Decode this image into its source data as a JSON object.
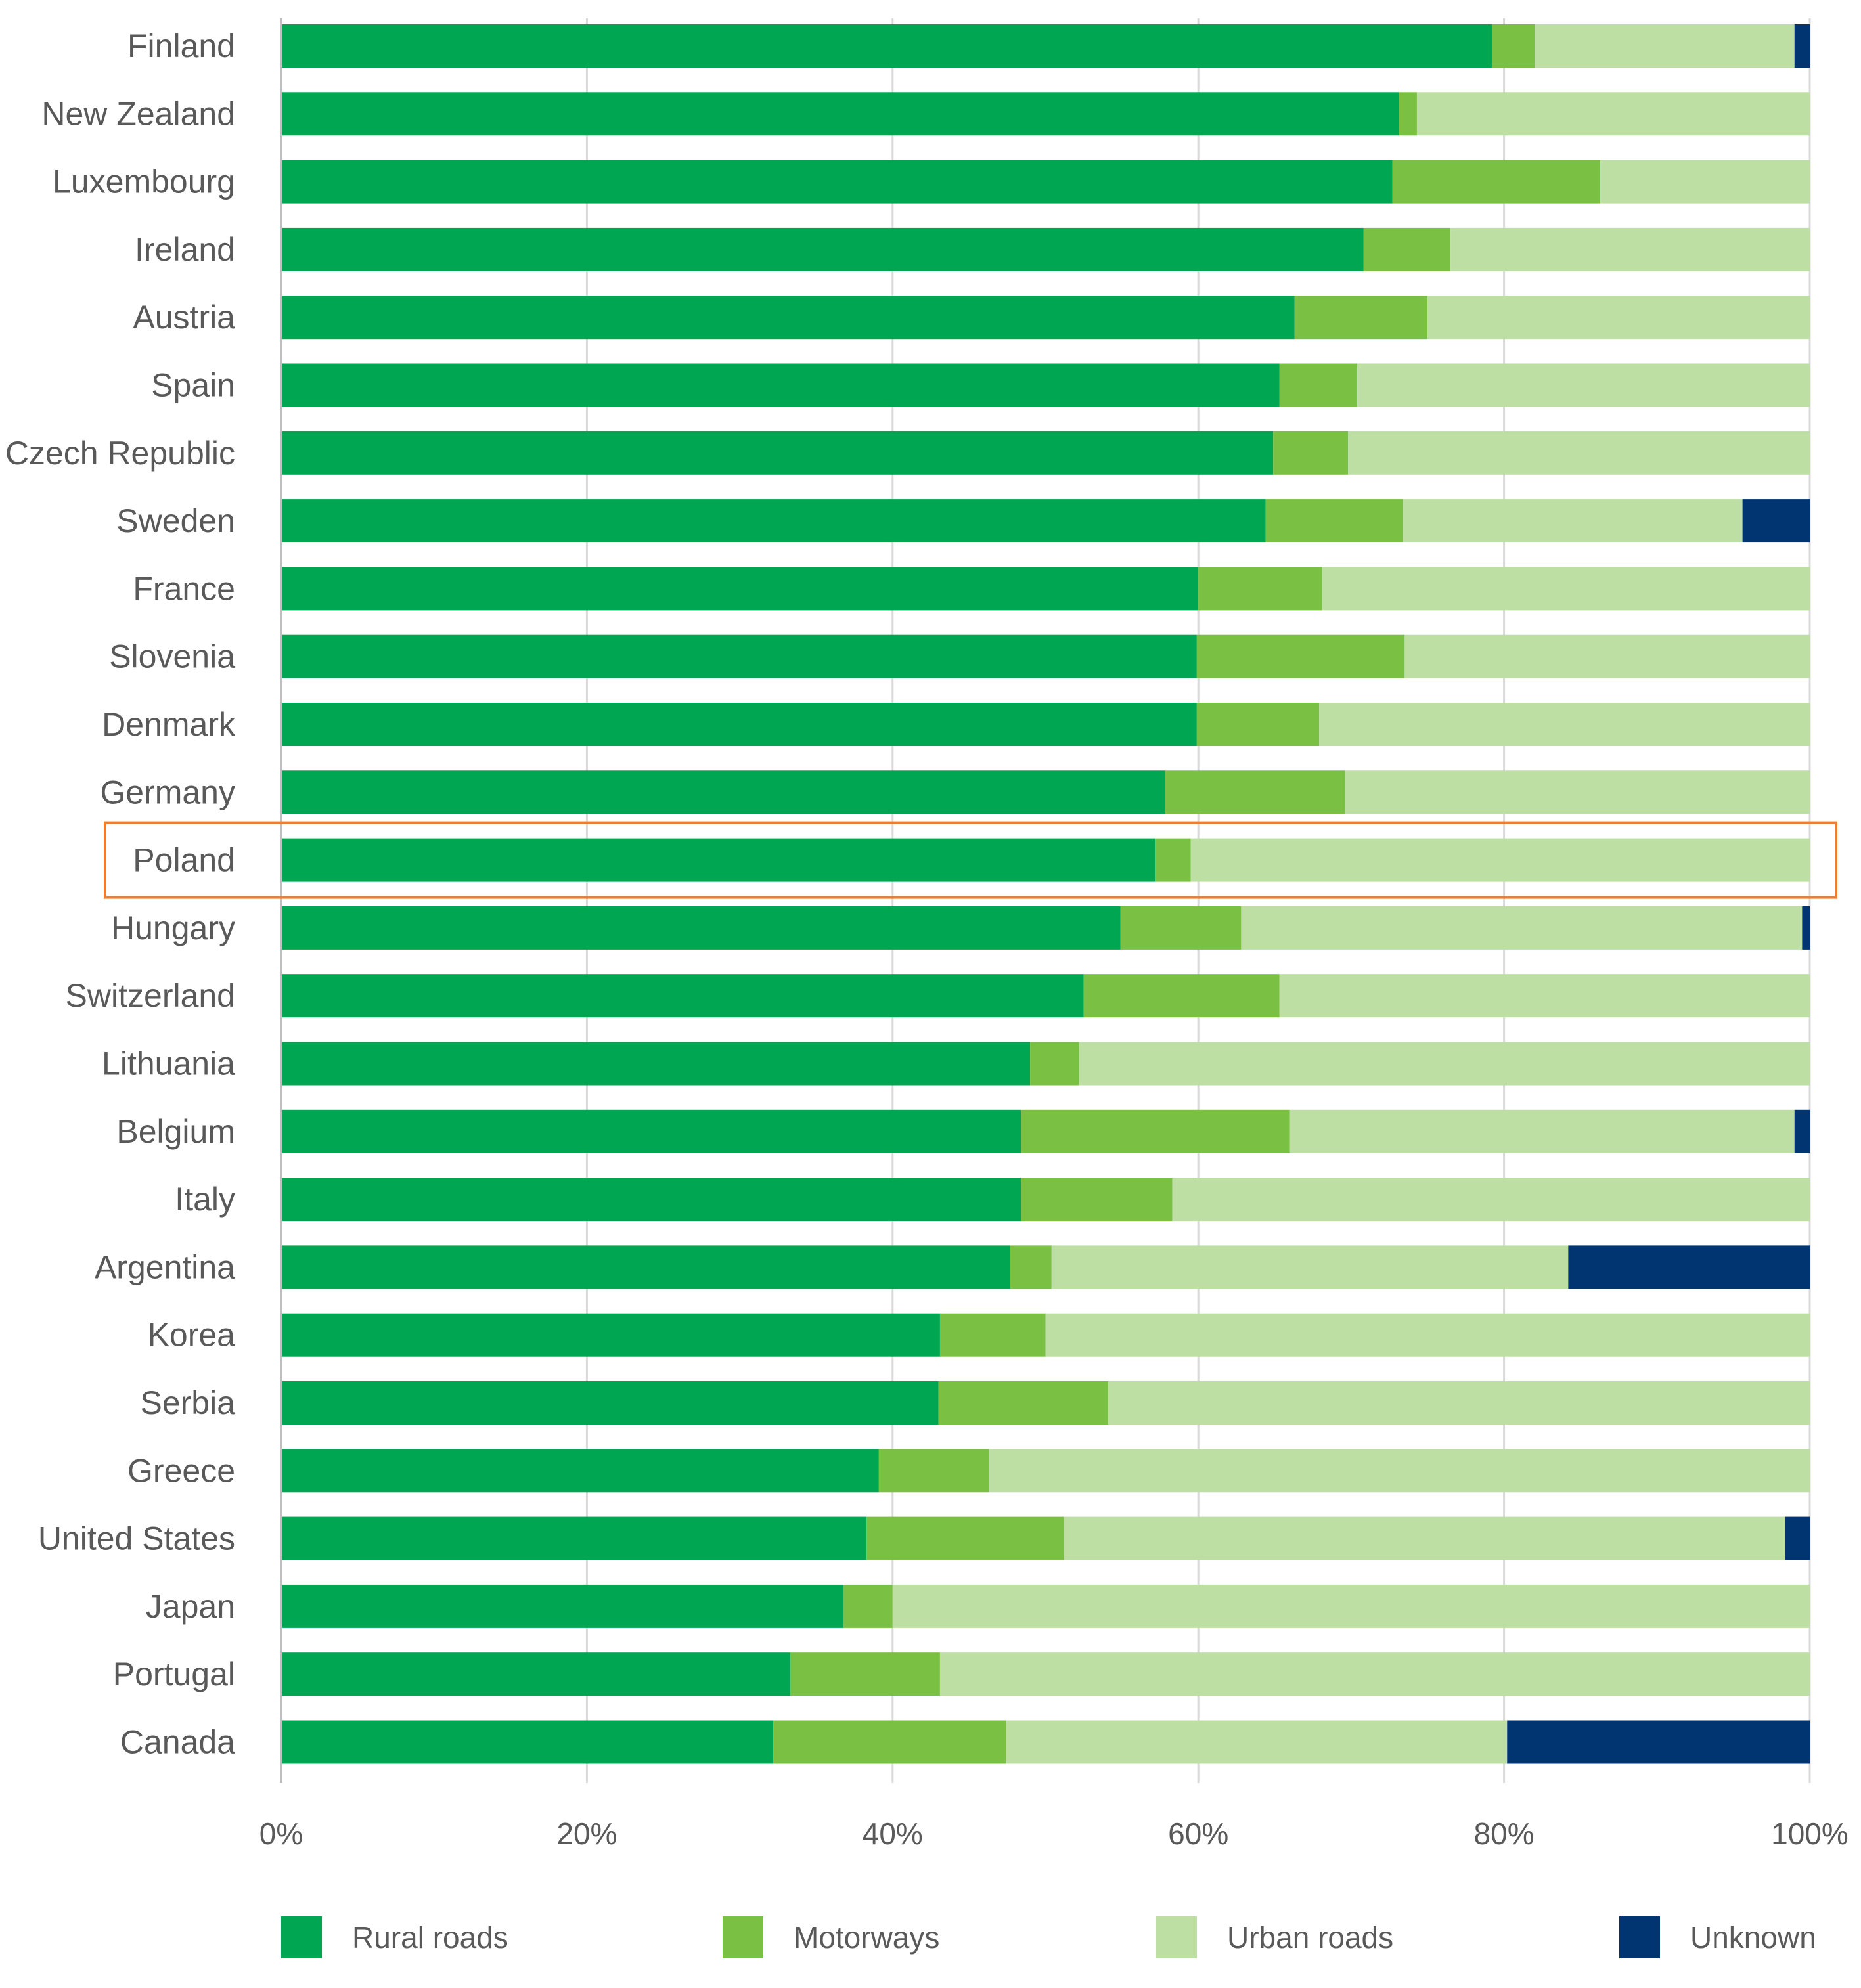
{
  "chart_data": {
    "type": "bar",
    "orientation": "horizontal",
    "stacked": true,
    "title": "",
    "xlabel": "",
    "ylabel": "",
    "xlim": [
      0,
      100
    ],
    "xtick_labels": [
      "0%",
      "20%",
      "40%",
      "60%",
      "80%",
      "100%"
    ],
    "grid": true,
    "legend_position": "bottom",
    "highlighted_category": "Poland",
    "highlight_color": "#ED7D31",
    "categories": [
      "Finland",
      "New Zealand",
      "Luxembourg",
      "Ireland",
      "Austria",
      "Spain",
      "Czech Republic",
      "Sweden",
      "France",
      "Slovenia",
      "Denmark",
      "Germany",
      "Poland",
      "Hungary",
      "Switzerland",
      "Lithuania",
      "Belgium",
      "Italy",
      "Argentina",
      "Korea",
      "Serbia",
      "Greece",
      "United States",
      "Japan",
      "Portugal",
      "Canada"
    ],
    "series": [
      {
        "name": "Rural roads",
        "color": "#00A651",
        "values": [
          79.2,
          73.1,
          72.7,
          70.8,
          66.3,
          65.3,
          64.9,
          64.4,
          60.0,
          59.9,
          59.9,
          57.8,
          57.2,
          54.9,
          52.5,
          49.0,
          48.4,
          48.4,
          47.7,
          43.1,
          43.0,
          39.1,
          38.3,
          36.8,
          33.3,
          32.2
        ]
      },
      {
        "name": "Motorways",
        "color": "#7AC143",
        "values": [
          2.8,
          1.2,
          13.6,
          5.7,
          8.7,
          5.1,
          4.9,
          9.0,
          8.1,
          13.6,
          8.0,
          11.8,
          2.3,
          7.9,
          12.8,
          3.2,
          17.6,
          9.9,
          2.7,
          6.9,
          11.1,
          7.2,
          12.9,
          3.2,
          9.8,
          15.2
        ]
      },
      {
        "name": "Urban roads",
        "color": "#BDDFA4",
        "values": [
          17.0,
          25.7,
          13.7,
          23.5,
          25.0,
          29.6,
          30.2,
          22.2,
          31.9,
          26.5,
          32.1,
          30.4,
          40.5,
          36.7,
          34.7,
          47.8,
          33.0,
          41.7,
          33.8,
          50.0,
          45.9,
          53.7,
          47.2,
          60.0,
          56.9,
          32.8
        ]
      },
      {
        "name": "Unknown",
        "color": "#003572",
        "values": [
          1.0,
          0,
          0,
          0,
          0,
          0,
          0,
          4.4,
          0,
          0,
          0,
          0,
          0,
          0.5,
          0,
          0,
          1.0,
          0,
          15.8,
          0,
          0,
          0,
          1.6,
          0,
          0,
          19.8
        ]
      }
    ]
  }
}
